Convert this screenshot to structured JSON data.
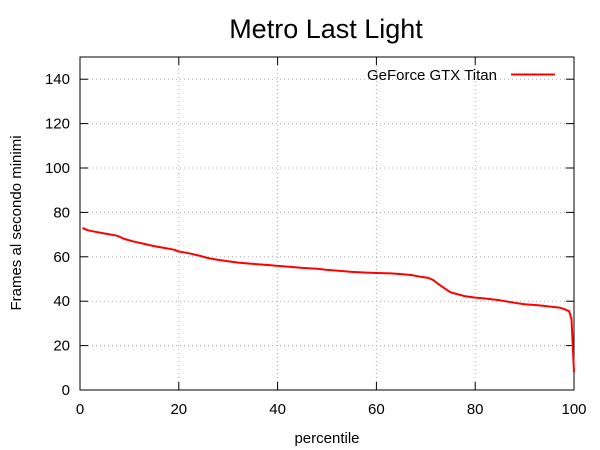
{
  "chart_data": {
    "type": "line",
    "title": "Metro Last Light",
    "xlabel": "percentile",
    "ylabel": "Frames al secondo minimi",
    "xlim": [
      0,
      100
    ],
    "ylim": [
      0,
      150
    ],
    "xticks": [
      0,
      20,
      40,
      60,
      80,
      100
    ],
    "yticks": [
      0,
      20,
      40,
      60,
      80,
      100,
      120,
      140
    ],
    "xtick_labels": [
      "0",
      "20",
      "40",
      "60",
      "80",
      "100"
    ],
    "ytick_labels": [
      "0",
      "20",
      "40",
      "60",
      "80",
      "100",
      "120",
      "140"
    ],
    "grid": true,
    "legend_position": "top-right",
    "series": [
      {
        "name": "GeForce GTX Titan",
        "color": "#ff0000",
        "x": [
          0.5,
          1.5,
          3,
          5,
          7.5,
          9,
          11,
          13,
          15,
          17,
          19,
          20,
          22,
          24,
          26,
          28,
          30,
          32,
          35,
          38,
          40,
          43,
          45,
          48,
          50,
          53,
          55,
          58,
          60,
          63,
          65,
          67,
          69,
          70.5,
          71.5,
          73,
          75,
          77,
          78,
          80,
          82,
          85,
          88,
          90,
          93,
          95,
          97,
          98,
          99,
          99.5,
          100
        ],
        "y": [
          73,
          72,
          71.3,
          70.5,
          69.5,
          68,
          66.8,
          65.8,
          64.8,
          64,
          63.2,
          62.4,
          61.6,
          60.6,
          59.4,
          58.6,
          58,
          57.4,
          56.8,
          56.3,
          55.9,
          55.4,
          55,
          54.6,
          54.1,
          53.6,
          53.2,
          52.9,
          52.7,
          52.5,
          52.2,
          51.8,
          51,
          50.5,
          49.5,
          47,
          44,
          42.8,
          42.2,
          41.6,
          41.2,
          40.4,
          39.3,
          38.6,
          38.1,
          37.6,
          37.1,
          36.5,
          35.5,
          32,
          8
        ]
      }
    ]
  }
}
